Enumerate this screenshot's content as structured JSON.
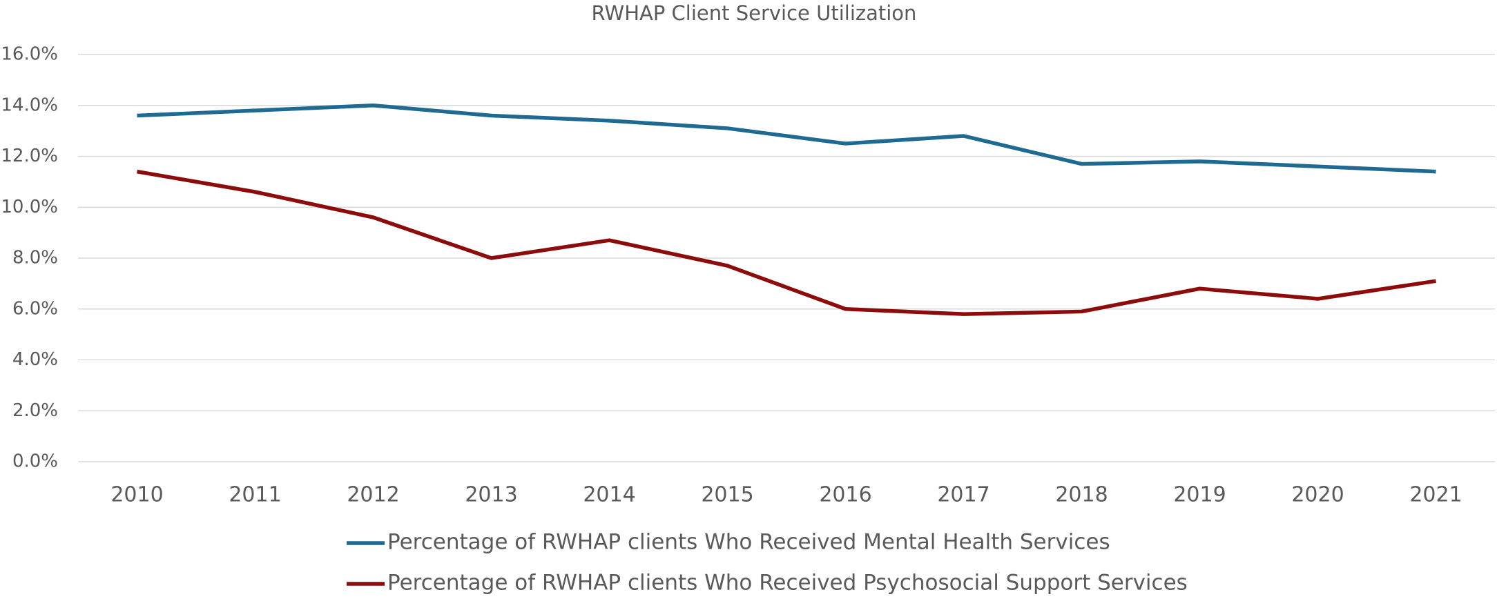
{
  "chart_data": {
    "type": "line",
    "title": "RWHAP Client Service Utilization",
    "categories": [
      "2010",
      "2011",
      "2012",
      "2013",
      "2014",
      "2015",
      "2016",
      "2017",
      "2018",
      "2019",
      "2020",
      "2021"
    ],
    "series": [
      {
        "name": "Percentage of RWHAP clients Who Received Mental Health Services",
        "color": "#1f6a93",
        "values": [
          13.6,
          13.8,
          14.0,
          13.6,
          13.4,
          13.1,
          12.5,
          12.8,
          11.7,
          11.8,
          11.6,
          11.4
        ]
      },
      {
        "name": "Percentage of RWHAP clients Who Received Psychosocial Support Services",
        "color": "#8c0b0b",
        "values": [
          11.4,
          10.6,
          9.6,
          8.0,
          8.7,
          7.7,
          6.0,
          5.8,
          5.9,
          6.8,
          6.4,
          7.1
        ]
      }
    ],
    "ylim": [
      0,
      16
    ],
    "yticks": [
      {
        "value": 0,
        "label": "0.0%"
      },
      {
        "value": 2,
        "label": "2.0%"
      },
      {
        "value": 4,
        "label": "4.0%"
      },
      {
        "value": 6,
        "label": "6.0%"
      },
      {
        "value": 8,
        "label": "8.0%"
      },
      {
        "value": 10,
        "label": "10.0%"
      },
      {
        "value": 12,
        "label": "12.0%"
      },
      {
        "value": 14,
        "label": "14.0%"
      },
      {
        "value": 16,
        "label": "16.0%"
      }
    ],
    "grid": true,
    "legend": "bottom"
  }
}
